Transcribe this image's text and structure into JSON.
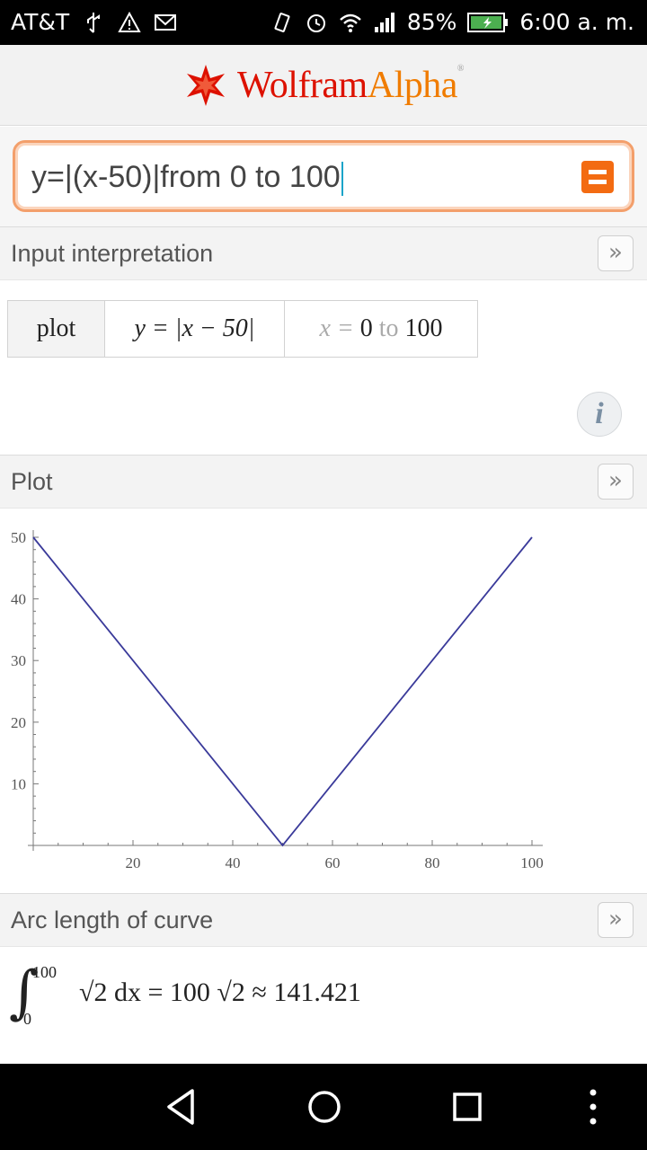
{
  "status_bar": {
    "carrier": "AT&T",
    "battery": "85%",
    "time": "6:00 a. m.",
    "icons": [
      "usb-icon",
      "warning-icon",
      "gmail-icon",
      "vibrate-icon",
      "alarm-icon",
      "wifi-icon",
      "signal-icon",
      "battery-icon"
    ]
  },
  "header": {
    "logo_part1": "Wolfram",
    "logo_part2": "Alpha"
  },
  "search": {
    "query": "y=|(x-50)|from 0 to 100"
  },
  "pods": {
    "input_interpretation": {
      "title": "Input interpretation",
      "more": "»",
      "cells": {
        "plot": "plot",
        "function": "y = |x − 50|",
        "range_var": "x =",
        "range_from": "0",
        "range_to_word": "to",
        "range_to": "100"
      }
    },
    "plot": {
      "title": "Plot",
      "more": "»"
    },
    "arc_length": {
      "title": "Arc length of curve",
      "more": "»",
      "upper": "100",
      "lower": "0",
      "expression": "√2 dx = 100 √2 ≈ 141.421"
    }
  },
  "chart_data": {
    "type": "line",
    "x": [
      0,
      50,
      100
    ],
    "y": [
      50,
      0,
      50
    ],
    "xlim": [
      0,
      100
    ],
    "ylim": [
      0,
      50
    ],
    "x_ticks": [
      20,
      40,
      60,
      80,
      100
    ],
    "y_ticks": [
      10,
      20,
      30,
      40,
      50
    ],
    "color": "#3a3a9a",
    "grid": false
  },
  "info_label": "i",
  "nav": [
    "back-button",
    "home-button",
    "recents-button",
    "menu-button"
  ]
}
